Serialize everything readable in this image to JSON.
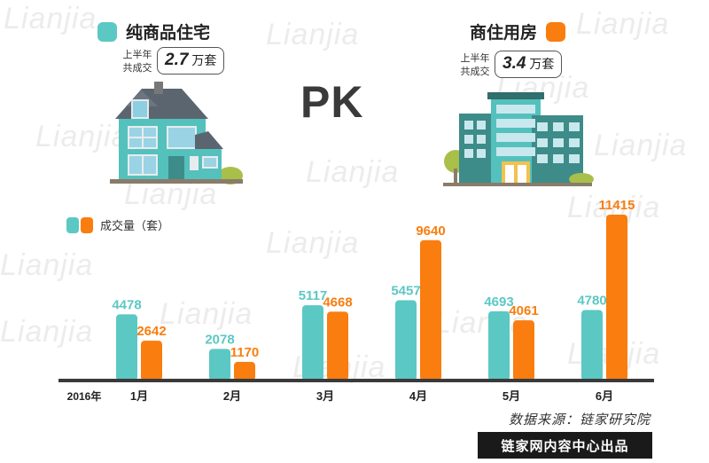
{
  "watermark": "Lianjia",
  "legend_left": {
    "label": "纯商品住宅",
    "color": "#5bc8c4"
  },
  "legend_right": {
    "label": "商住用房",
    "color": "#f97d0f"
  },
  "stat_left": {
    "label_line1": "上半年",
    "label_line2": "共成交",
    "value": "2.7",
    "unit": "万套"
  },
  "stat_right": {
    "label_line1": "上半年",
    "label_line2": "共成交",
    "value": "3.4",
    "unit": "万套"
  },
  "pk_text": "PK",
  "chart_legend_label": "成交量（套）",
  "source": "数据来源：链家研究院",
  "banner": "链家网内容中心出品",
  "chart_data": {
    "type": "bar",
    "year_label": "2016年",
    "categories": [
      "1月",
      "2月",
      "3月",
      "4月",
      "5月",
      "6月"
    ],
    "series": [
      {
        "name": "纯商品住宅",
        "color": "#5bc8c4",
        "values": [
          4478,
          2078,
          5117,
          5457,
          4693,
          4780
        ]
      },
      {
        "name": "商住用房",
        "color": "#f97d0f",
        "values": [
          2642,
          1170,
          4668,
          9640,
          4061,
          11415
        ]
      }
    ],
    "ylabel": "成交量（套）",
    "ylim": [
      0,
      11415
    ],
    "grid": false
  }
}
